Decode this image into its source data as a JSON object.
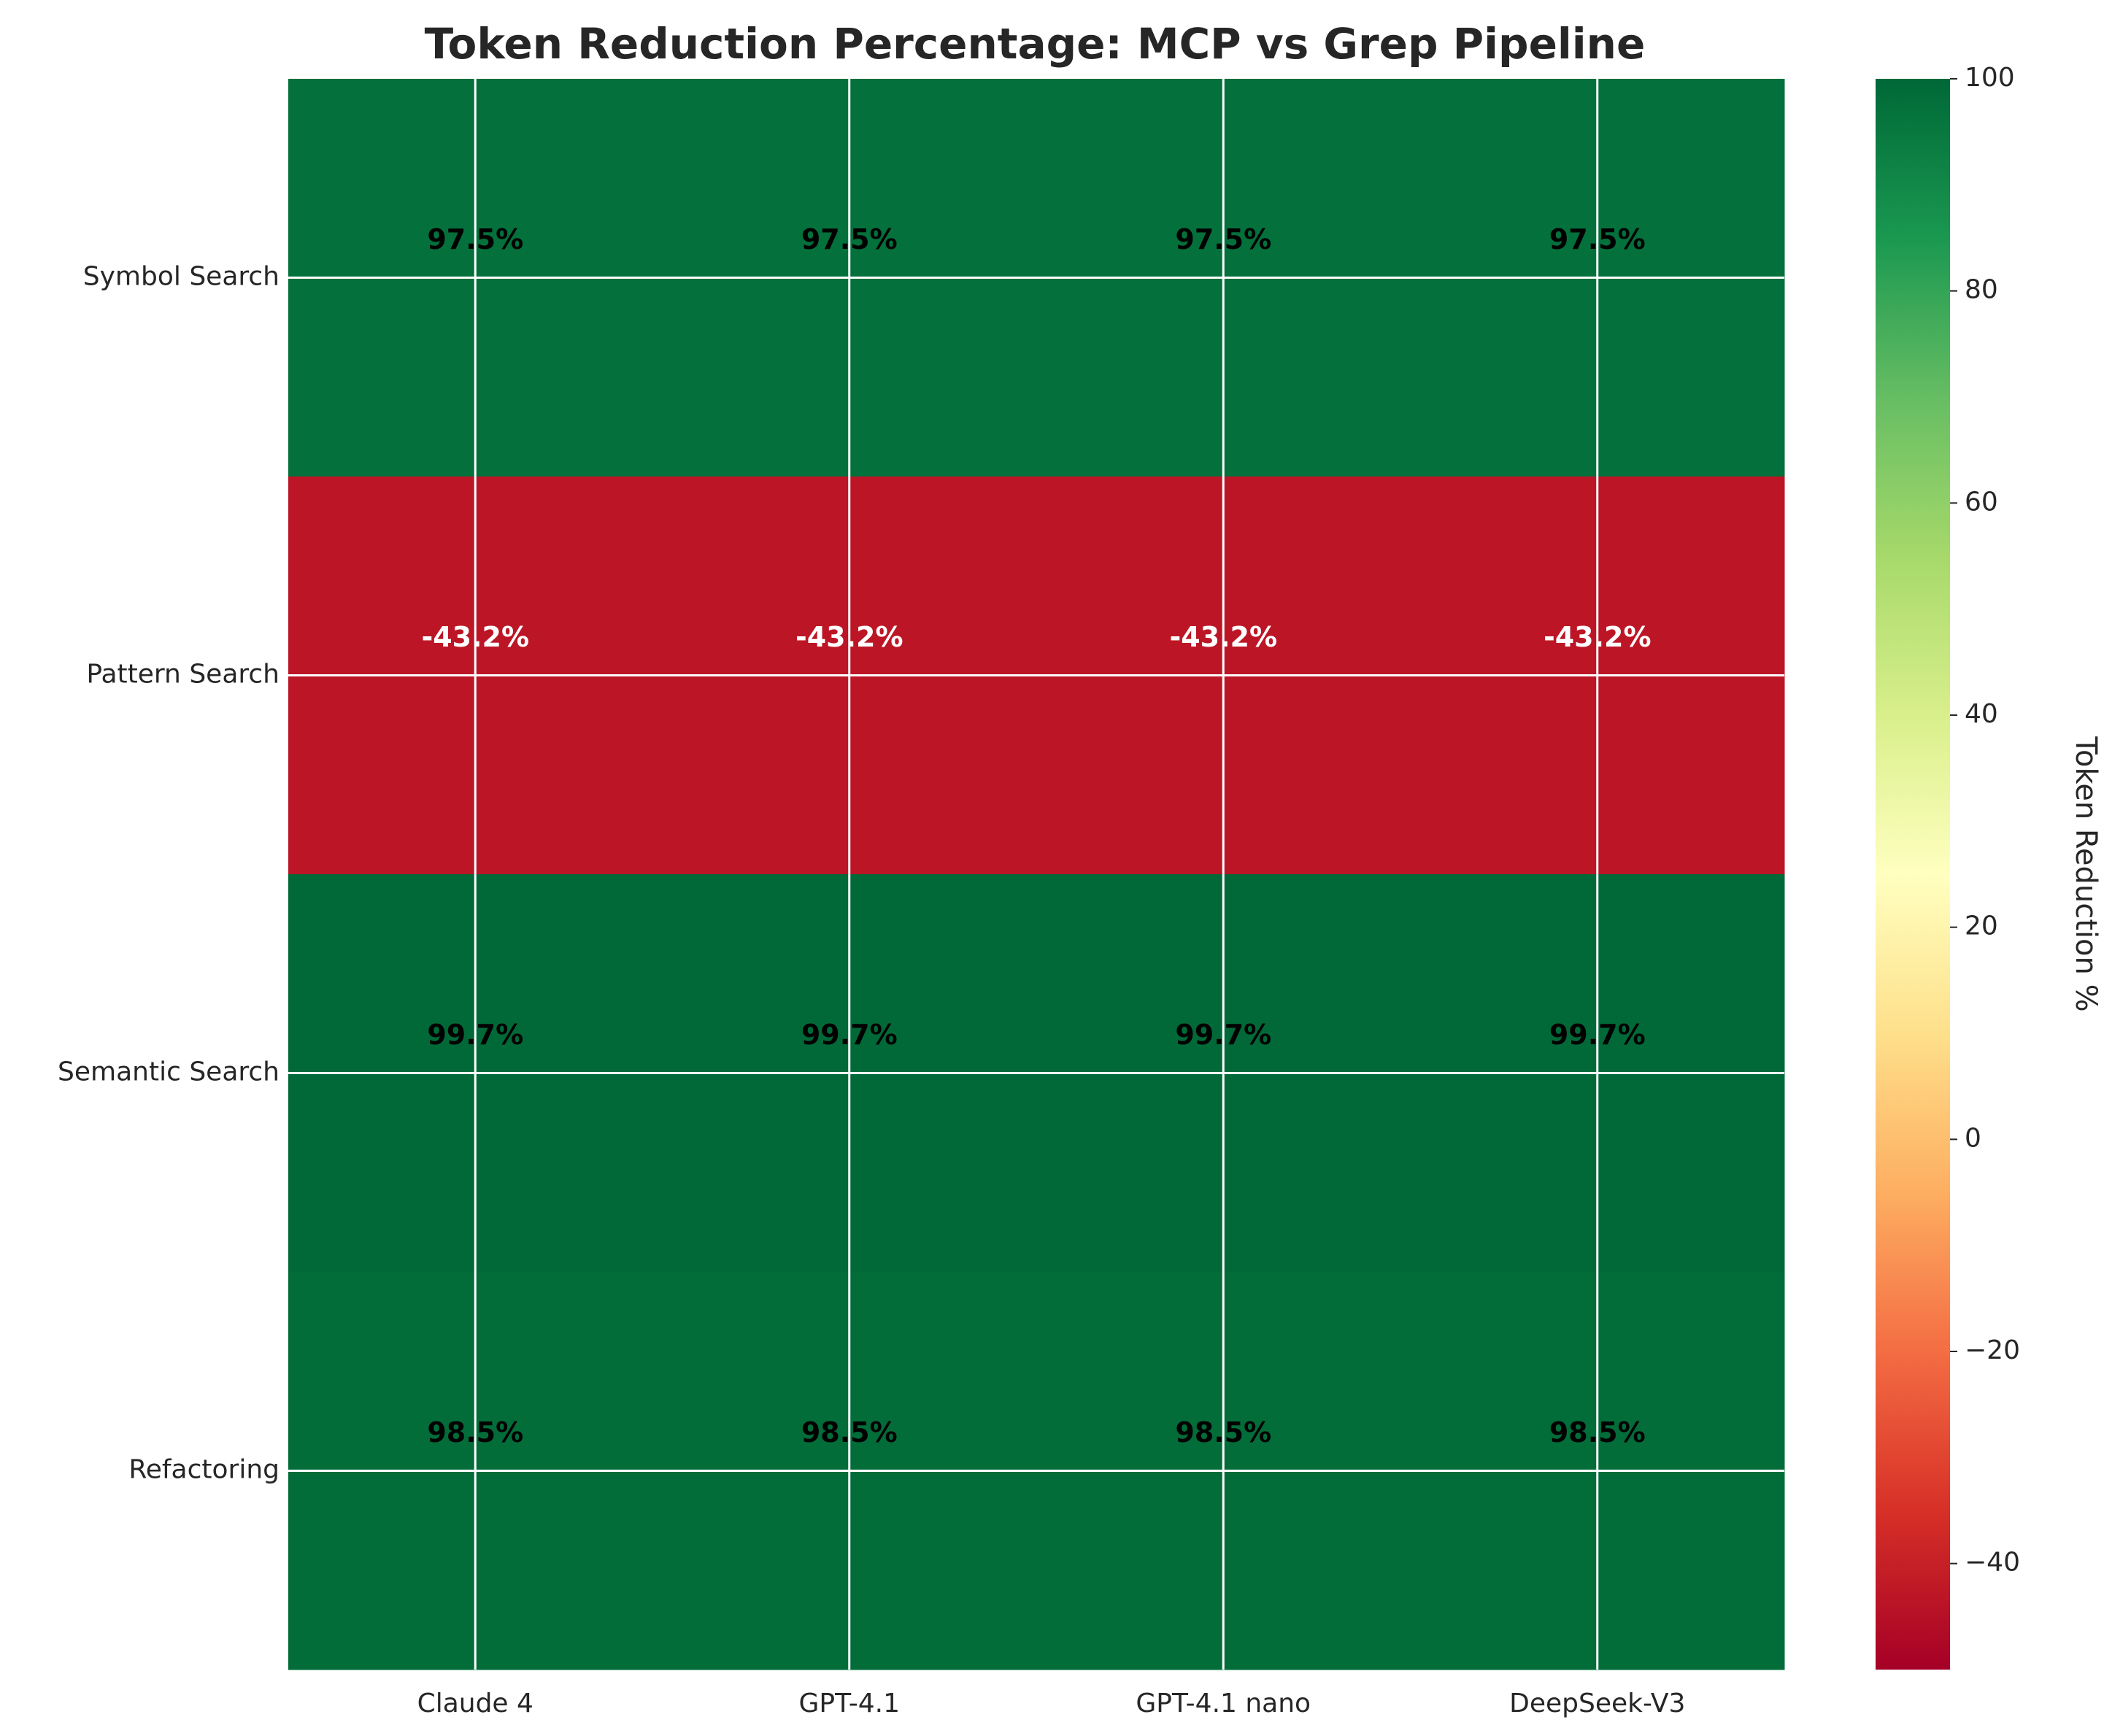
{
  "chart_data": {
    "type": "heatmap",
    "title": "Token Reduction Percentage: MCP vs Grep Pipeline",
    "x_categories": [
      "Claude 4",
      "GPT-4.1",
      "GPT-4.1 nano",
      "DeepSeek-V3"
    ],
    "y_categories": [
      "Symbol Search",
      "Pattern Search",
      "Semantic Search",
      "Refactoring"
    ],
    "values": [
      [
        97.5,
        97.5,
        97.5,
        97.5
      ],
      [
        -43.2,
        -43.2,
        -43.2,
        -43.2
      ],
      [
        99.7,
        99.7,
        99.7,
        99.7
      ],
      [
        98.5,
        98.5,
        98.5,
        98.5
      ]
    ],
    "cell_labels": [
      [
        "97.5%",
        "97.5%",
        "97.5%",
        "97.5%"
      ],
      [
        "-43.2%",
        "-43.2%",
        "-43.2%",
        "-43.2%"
      ],
      [
        "99.7%",
        "99.7%",
        "99.7%",
        "99.7%"
      ],
      [
        "98.5%",
        "98.5%",
        "98.5%",
        "98.5%"
      ]
    ],
    "colorbar": {
      "label": "Token Reduction %",
      "range": [
        -50,
        100
      ],
      "ticks": [
        100,
        80,
        60,
        40,
        20,
        0,
        -20,
        -40
      ],
      "tick_labels": [
        "100",
        "80",
        "60",
        "40",
        "20",
        "0",
        "−20",
        "−40"
      ],
      "colormap": "RdYlGn"
    },
    "grid": true
  }
}
